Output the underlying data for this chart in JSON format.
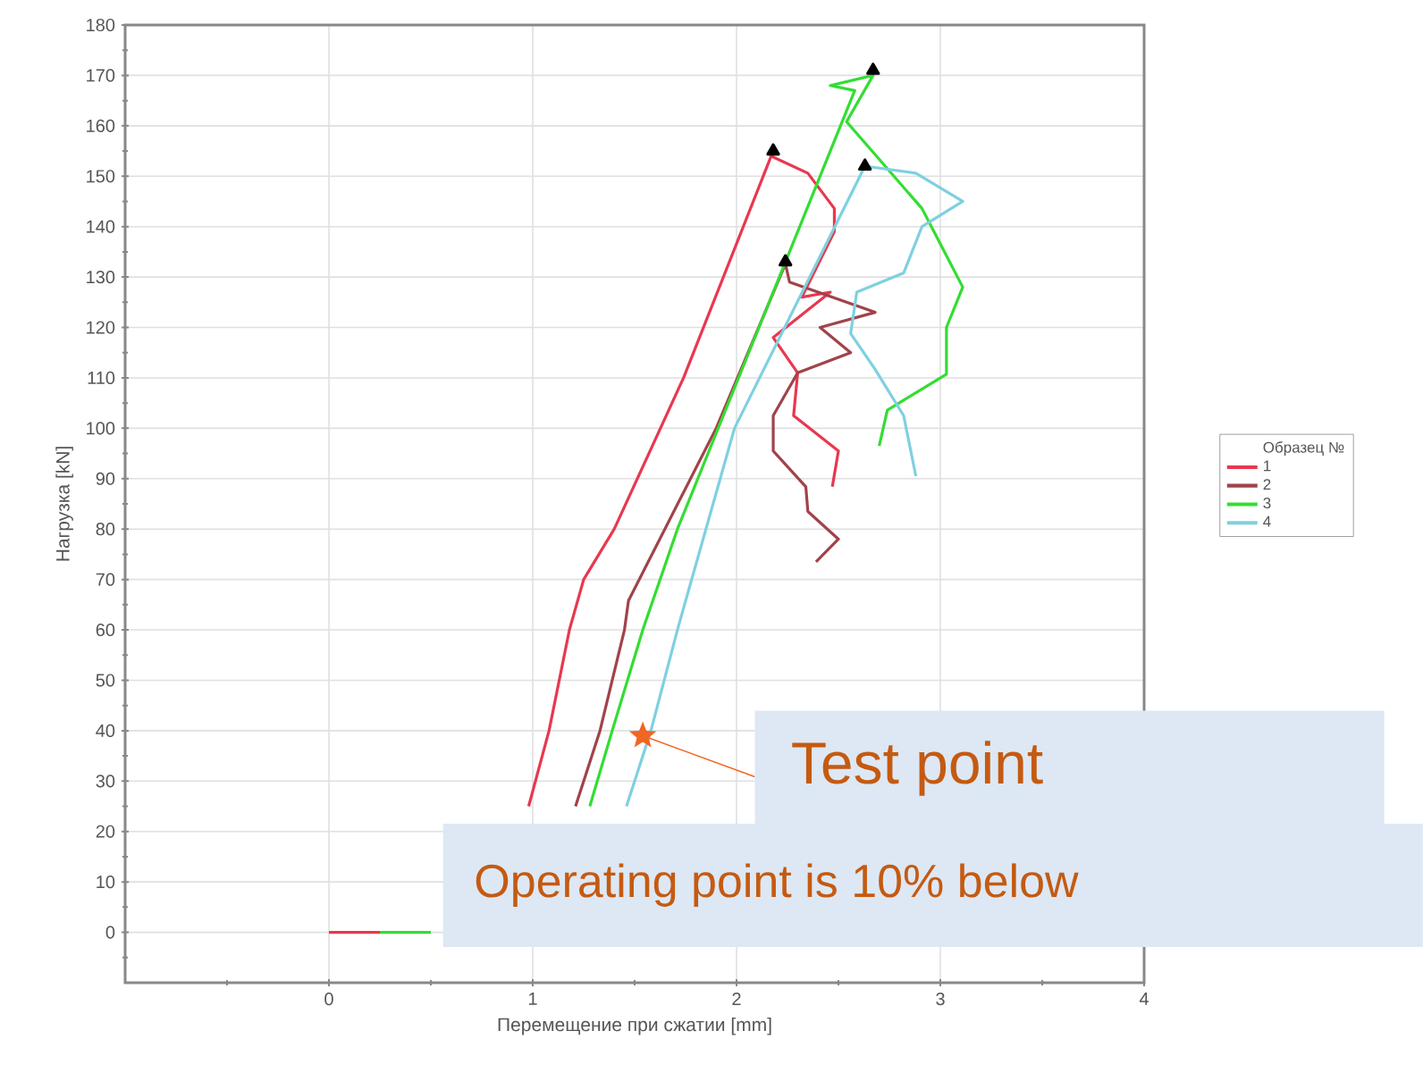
{
  "chart_data": {
    "type": "line",
    "xlabel": "Перемещение при сжатии [mm]",
    "ylabel": "Нагрузка [kN]",
    "legend_title": "Образец №",
    "legend": "right",
    "grid": true,
    "line_style": "solid",
    "xlim": [
      -1,
      4
    ],
    "ylim": [
      -10,
      180
    ],
    "xticks": [
      {
        "value": -0.5,
        "label": null
      },
      0,
      {
        "value": 0.5,
        "label": null
      },
      1,
      {
        "value": 1.5,
        "label": null
      },
      2,
      {
        "value": 2.5,
        "label": null
      },
      3,
      {
        "value": 3.5,
        "label": null
      },
      4
    ],
    "yticks": [
      {
        "value": -5,
        "label": null
      },
      0,
      {
        "value": 5,
        "label": null
      },
      10,
      {
        "value": 15,
        "label": null
      },
      20,
      {
        "value": 25,
        "label": null
      },
      30,
      {
        "value": 35,
        "label": null
      },
      40,
      {
        "value": 45,
        "label": null
      },
      50,
      {
        "value": 55,
        "label": null
      },
      60,
      {
        "value": 65,
        "label": null
      },
      70,
      {
        "value": 75,
        "label": null
      },
      80,
      {
        "value": 85,
        "label": null
      },
      90,
      {
        "value": 95,
        "label": null
      },
      100,
      {
        "value": 105,
        "label": null
      },
      110,
      {
        "value": 115,
        "label": null
      },
      120,
      {
        "value": 125,
        "label": null
      },
      130,
      {
        "value": 135,
        "label": null
      },
      140,
      {
        "value": 145,
        "label": null
      },
      150,
      {
        "value": 155,
        "label": null
      },
      160,
      {
        "value": 165,
        "label": null
      },
      170,
      {
        "value": 175,
        "label": null
      },
      180
    ],
    "series": [
      {
        "name": "1",
        "color": "#e8384f",
        "x": [
          0,
          0.25,
          0.6,
          0.98,
          1.08,
          1.18,
          1.25,
          1.4,
          1.74,
          2.17,
          2.35,
          2.48,
          2.48,
          2.32,
          2.46,
          2.18,
          2.3,
          2.28,
          2.5,
          2.47
        ],
        "values": [
          0,
          0,
          null,
          25,
          40,
          60,
          70,
          80,
          110,
          154,
          150.6,
          143.6,
          139,
          126,
          127,
          118,
          111,
          102.5,
          95.5,
          88.4
        ]
      },
      {
        "name": "2",
        "color": "#a0434a",
        "x": [
          1.21,
          1.33,
          1.45,
          1.47,
          1.9,
          2.24,
          2.26,
          2.68,
          2.41,
          2.56,
          2.3,
          2.18,
          2.18,
          2.34,
          2.35,
          2.5,
          2.39
        ],
        "values": [
          25,
          40,
          60,
          65.8,
          100,
          132.6,
          129,
          123,
          120,
          115,
          111,
          102.5,
          95.5,
          88.4,
          83.5,
          78,
          73.5
        ]
      },
      {
        "name": "3",
        "color": "#33dd33",
        "x": [
          0.25,
          0.5,
          0.9,
          1.28,
          1.39,
          1.54,
          1.71,
          2.58,
          2.46,
          2.67,
          2.54,
          2.91,
          3.11,
          3.03,
          3.03,
          2.74,
          2.7
        ],
        "values": [
          0,
          0,
          null,
          25,
          40,
          60,
          80,
          167,
          168,
          170,
          160.8,
          143.6,
          128,
          120,
          110.7,
          103.6,
          96.5
        ]
      },
      {
        "name": "4",
        "color": "#7fd0e0",
        "x": [
          1.46,
          1.58,
          1.71,
          1.78,
          1.99,
          2.63,
          2.88,
          3.11,
          2.91,
          2.82,
          2.59,
          2.56,
          2.68,
          2.82,
          2.88
        ],
        "values": [
          25,
          40,
          60,
          70,
          100,
          152,
          150.6,
          145,
          140,
          130.8,
          127,
          118.8,
          111.7,
          102.5,
          90.5
        ]
      },
      {
        "type": "scatter",
        "marker": "triangle",
        "color": "#000000",
        "x": [
          2.18,
          2.24,
          2.67,
          2.63
        ],
        "values": [
          155,
          133,
          171,
          152
        ]
      }
    ],
    "annotations": [
      {
        "text": "Test point",
        "x": 1.54,
        "y": 39
      },
      "Operating point is 10% below"
    ]
  }
}
